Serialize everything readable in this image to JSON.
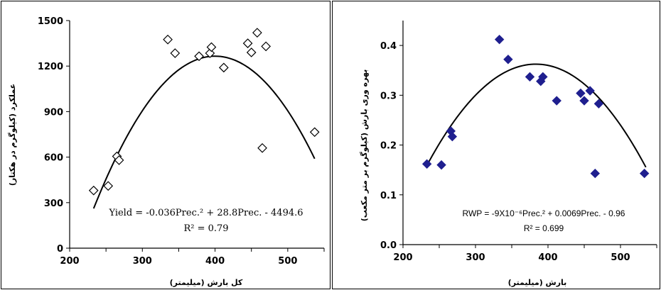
{
  "chart_data": [
    {
      "type": "scatter",
      "title": "",
      "xlabel": "کل بارش (ميليمتر)",
      "ylabel": "عملکرد (کیلوگرم در هکتار)",
      "xlim": [
        200,
        550
      ],
      "ylim": [
        0,
        1500
      ],
      "xticks": [
        "200",
        "300",
        "400",
        "500"
      ],
      "yticks": [
        "0",
        "300",
        "600",
        "900",
        "1200",
        "1500"
      ],
      "grid": false,
      "marker": "open-diamond",
      "points": [
        [
          233,
          380
        ],
        [
          253,
          410
        ],
        [
          265,
          605
        ],
        [
          268,
          580
        ],
        [
          335,
          1375
        ],
        [
          345,
          1285
        ],
        [
          378,
          1265
        ],
        [
          393,
          1285
        ],
        [
          395,
          1325
        ],
        [
          412,
          1190
        ],
        [
          445,
          1350
        ],
        [
          450,
          1290
        ],
        [
          458,
          1420
        ],
        [
          465,
          660
        ],
        [
          470,
          1330
        ],
        [
          537,
          765
        ]
      ],
      "trendline": {
        "type": "quadratic",
        "a": -0.036,
        "b": 28.8,
        "c": -4494.6,
        "x_range": [
          233,
          537
        ]
      },
      "equation": "Yield = -0.036Prec.² + 28.8Prec. - 4494.6",
      "r2": "R² = 0.79"
    },
    {
      "type": "scatter",
      "title": "",
      "xlabel": "بارش (ميليمتر)",
      "ylabel": "بهره وری بارش (کیلوگرم بر متر مکعب)",
      "xlim": [
        200,
        550
      ],
      "ylim": [
        0.0,
        0.45
      ],
      "xticks": [
        "200",
        "300",
        "400",
        "500"
      ],
      "yticks": [
        "0.0",
        "0.1",
        "0.2",
        "0.3",
        "0.4"
      ],
      "grid": false,
      "marker": "filled-diamond",
      "marker_color": "#1f1f8f",
      "points": [
        [
          233,
          0.162
        ],
        [
          253,
          0.16
        ],
        [
          266,
          0.228
        ],
        [
          268,
          0.217
        ],
        [
          333,
          0.412
        ],
        [
          345,
          0.372
        ],
        [
          375,
          0.337
        ],
        [
          390,
          0.328
        ],
        [
          393,
          0.337
        ],
        [
          412,
          0.289
        ],
        [
          445,
          0.304
        ],
        [
          450,
          0.289
        ],
        [
          458,
          0.309
        ],
        [
          465,
          0.143
        ],
        [
          470,
          0.283
        ],
        [
          533,
          0.143
        ]
      ],
      "trendline": {
        "type": "quadratic",
        "a": -9e-06,
        "b": 0.0069,
        "c": -0.96,
        "x_range": [
          233,
          535
        ]
      },
      "equation": "RWP = -9X10⁻⁶Prec.² + 0.0069Prec. - 0.96",
      "r2": "R² = 0.699"
    }
  ]
}
